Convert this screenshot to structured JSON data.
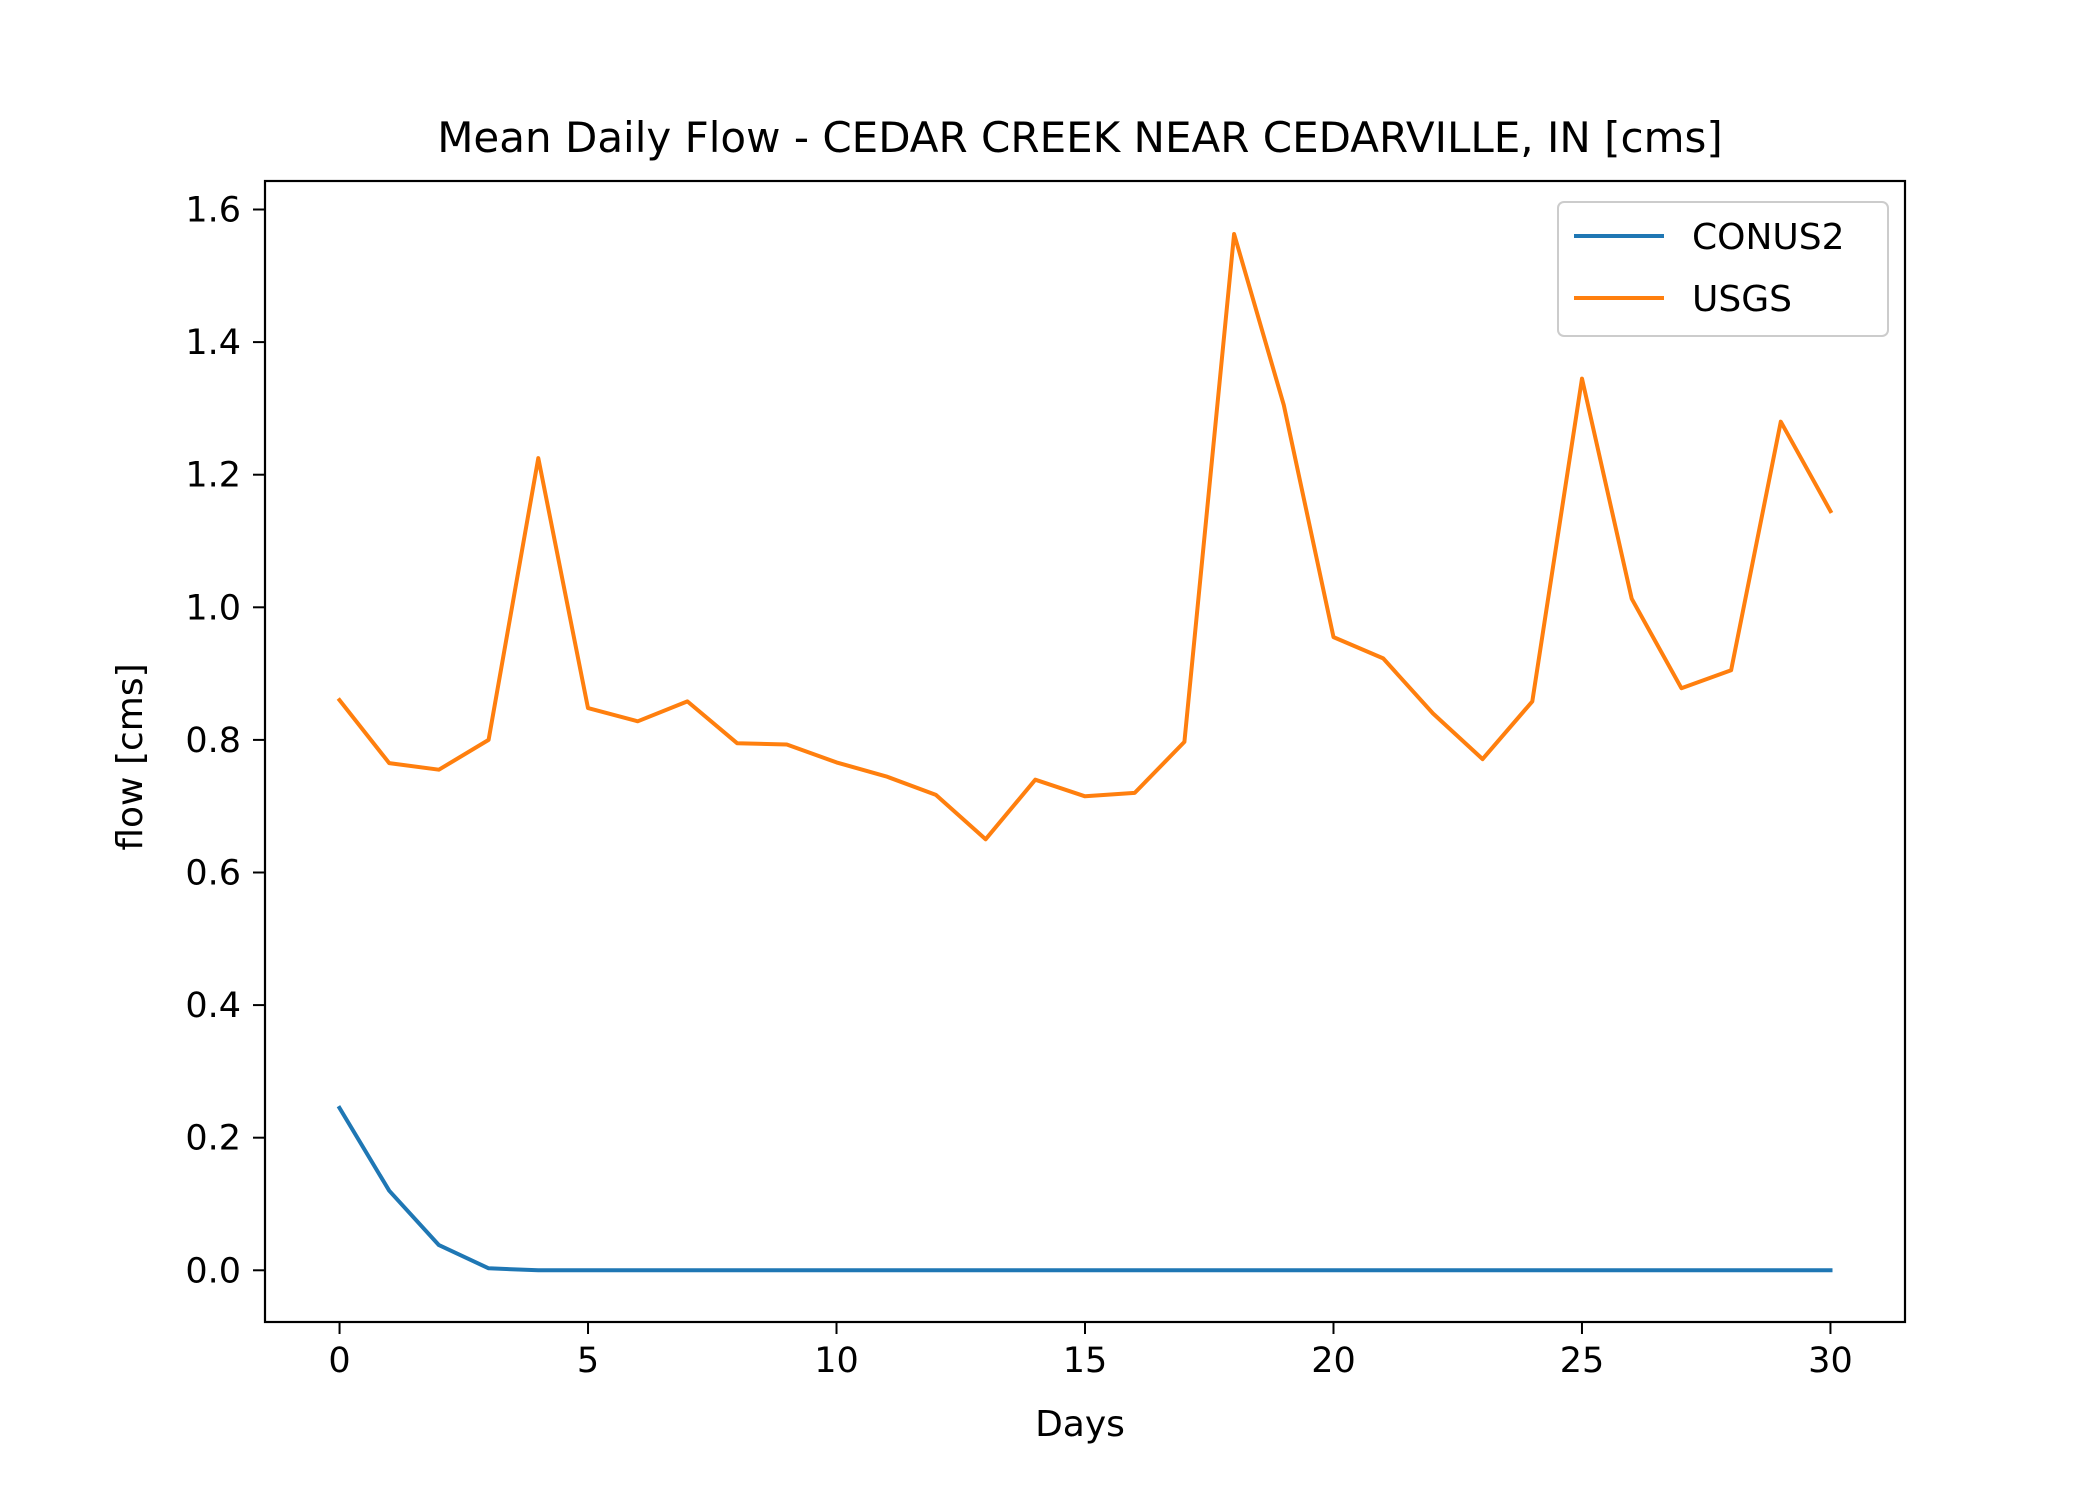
{
  "chart_data": {
    "type": "line",
    "title": "Mean Daily Flow - CEDAR CREEK NEAR CEDARVILLE, IN [cms]",
    "xlabel": "Days",
    "ylabel": "flow [cms]",
    "xlim": [
      -1.5,
      31.5
    ],
    "ylim": [
      -0.078,
      1.643
    ],
    "xticks": [
      0,
      5,
      10,
      15,
      20,
      25,
      30
    ],
    "xtick_labels": [
      "0",
      "5",
      "10",
      "15",
      "20",
      "25",
      "30"
    ],
    "yticks": [
      0.0,
      0.2,
      0.4,
      0.6,
      0.8,
      1.0,
      1.2,
      1.4,
      1.6
    ],
    "ytick_labels": [
      "0.0",
      "0.2",
      "0.4",
      "0.6",
      "0.8",
      "1.0",
      "1.2",
      "1.4",
      "1.6"
    ],
    "grid": false,
    "legend_position": "top-right",
    "x": [
      0,
      1,
      2,
      3,
      4,
      5,
      6,
      7,
      8,
      9,
      10,
      11,
      12,
      13,
      14,
      15,
      16,
      17,
      18,
      19,
      20,
      21,
      22,
      23,
      24,
      25,
      26,
      27,
      28,
      29,
      30
    ],
    "series": [
      {
        "name": "CONUS2",
        "color": "#1f77b4",
        "values": [
          0.245,
          0.12,
          0.038,
          0.003,
          0.0,
          0.0,
          0.0,
          0.0,
          0.0,
          0.0,
          0.0,
          0.0,
          0.0,
          0.0,
          0.0,
          0.0,
          0.0,
          0.0,
          0.0,
          0.0,
          0.0,
          0.0,
          0.0,
          0.0,
          0.0,
          0.0,
          0.0,
          0.0,
          0.0,
          0.0,
          0.0
        ]
      },
      {
        "name": "USGS",
        "color": "#ff7f0e",
        "values": [
          0.86,
          0.765,
          0.755,
          0.8,
          1.225,
          0.848,
          0.828,
          0.858,
          0.795,
          0.793,
          0.766,
          0.745,
          0.717,
          0.65,
          0.74,
          0.715,
          0.72,
          0.797,
          1.563,
          1.305,
          0.955,
          0.923,
          0.84,
          0.771,
          0.858,
          1.345,
          1.013,
          0.878,
          0.905,
          1.28,
          1.145
        ]
      }
    ]
  }
}
